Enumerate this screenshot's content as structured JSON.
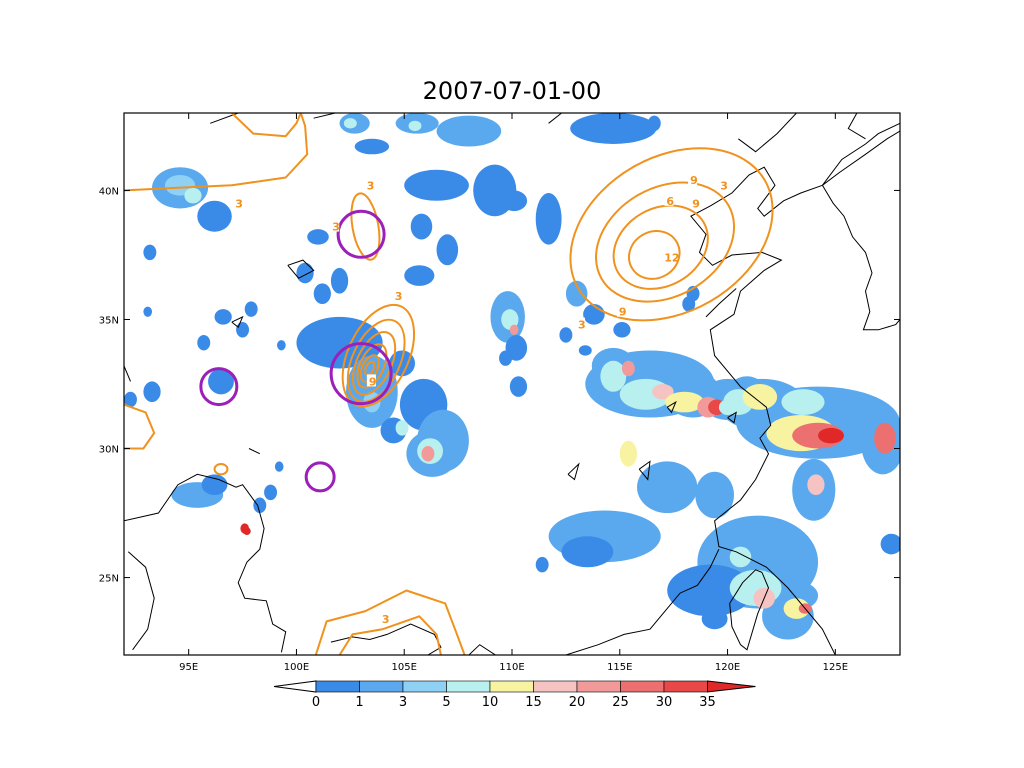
{
  "title": "2007-07-01-00",
  "map": {
    "lon_range": [
      92,
      128
    ],
    "lat_range": [
      22,
      43
    ],
    "x_ticks": [
      {
        "lon": 95,
        "label": "95E"
      },
      {
        "lon": 100,
        "label": "100E"
      },
      {
        "lon": 105,
        "label": "105E"
      },
      {
        "lon": 110,
        "label": "110E"
      },
      {
        "lon": 115,
        "label": "115E"
      },
      {
        "lon": 120,
        "label": "120E"
      },
      {
        "lon": 125,
        "label": "125E"
      }
    ],
    "y_ticks": [
      {
        "lat": 25,
        "label": "25N"
      },
      {
        "lat": 30,
        "label": "30N"
      },
      {
        "lat": 35,
        "label": "35N"
      },
      {
        "lat": 40,
        "label": "40N"
      }
    ],
    "contour_color": "#f0921e",
    "circle_color": "#9b1fb8",
    "coast_color": "#000000"
  },
  "contour_labels": [
    {
      "lon": 97.3,
      "lat": 39.5,
      "text": "3"
    },
    {
      "lon": 103.4,
      "lat": 40.2,
      "text": "3"
    },
    {
      "lon": 101.8,
      "lat": 38.6,
      "text": "3"
    },
    {
      "lon": 104.7,
      "lat": 35.9,
      "text": "3"
    },
    {
      "lon": 103.5,
      "lat": 32.6,
      "text": "9"
    },
    {
      "lon": 118.4,
      "lat": 40.4,
      "text": "9"
    },
    {
      "lon": 119.8,
      "lat": 40.2,
      "text": "3"
    },
    {
      "lon": 117.3,
      "lat": 39.6,
      "text": "6"
    },
    {
      "lon": 118.5,
      "lat": 39.5,
      "text": "9"
    },
    {
      "lon": 117.2,
      "lat": 37.4,
      "text": "12"
    },
    {
      "lon": 115.1,
      "lat": 35.3,
      "text": "9"
    },
    {
      "lon": 113.2,
      "lat": 34.8,
      "text": "3"
    },
    {
      "lon": 104.1,
      "lat": 23.4,
      "text": "3"
    }
  ],
  "colorbar": {
    "levels": [
      "0",
      "1",
      "3",
      "5",
      "10",
      "15",
      "20",
      "25",
      "30",
      "35"
    ],
    "colors": [
      "#3a8be8",
      "#5aa9ee",
      "#8fd0f5",
      "#b8f0f0",
      "#f7f3a0",
      "#f6c3c3",
      "#f29a9a",
      "#ec7070",
      "#e84848",
      "#e02828"
    ]
  }
}
